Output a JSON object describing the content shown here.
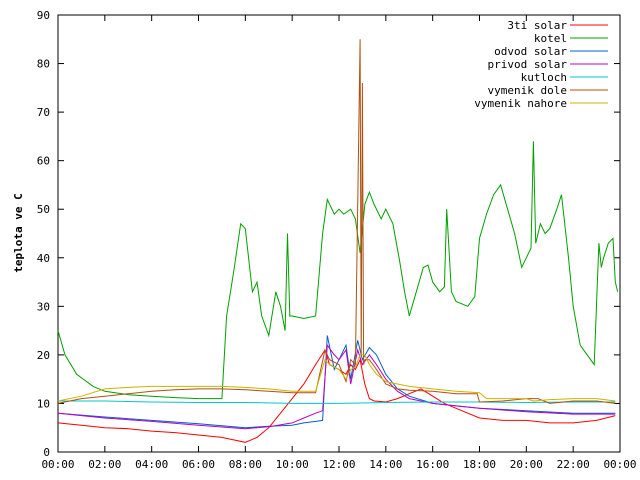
{
  "chart_data": {
    "type": "line",
    "title": "",
    "xlabel": "",
    "ylabel": "teplota ve C",
    "xlim": [
      0,
      24
    ],
    "ylim": [
      0,
      90
    ],
    "grid": false,
    "legend_position": "top-right",
    "x_ticks": [
      {
        "value": 0,
        "label": "00:00"
      },
      {
        "value": 2,
        "label": "02:00"
      },
      {
        "value": 4,
        "label": "04:00"
      },
      {
        "value": 6,
        "label": "06:00"
      },
      {
        "value": 8,
        "label": "08:00"
      },
      {
        "value": 10,
        "label": "10:00"
      },
      {
        "value": 12,
        "label": "12:00"
      },
      {
        "value": 14,
        "label": "14:00"
      },
      {
        "value": 16,
        "label": "16:00"
      },
      {
        "value": 18,
        "label": "18:00"
      },
      {
        "value": 20,
        "label": "20:00"
      },
      {
        "value": 22,
        "label": "22:00"
      },
      {
        "value": 24,
        "label": "00:00"
      }
    ],
    "y_ticks": [
      {
        "value": 0,
        "label": "0"
      },
      {
        "value": 10,
        "label": "10"
      },
      {
        "value": 20,
        "label": "20"
      },
      {
        "value": 30,
        "label": "30"
      },
      {
        "value": 40,
        "label": "40"
      },
      {
        "value": 50,
        "label": "50"
      },
      {
        "value": 60,
        "label": "60"
      },
      {
        "value": 70,
        "label": "70"
      },
      {
        "value": 80,
        "label": "80"
      },
      {
        "value": 90,
        "label": "90"
      }
    ],
    "series": [
      {
        "name": "3ti solar",
        "color": "#ff0000",
        "x": [
          0,
          1,
          2,
          3,
          4,
          5,
          6,
          7,
          7.5,
          8,
          8.5,
          9,
          9.5,
          10,
          10.5,
          11,
          11.4,
          11.6,
          12,
          12.3,
          12.5,
          12.7,
          12.9,
          13.1,
          13.3,
          13.5,
          14,
          14.5,
          15,
          15.5,
          16,
          16.5,
          17,
          18,
          19,
          20,
          21,
          22,
          23,
          23.8
        ],
        "y": [
          6,
          5.5,
          5,
          4.8,
          4.3,
          4,
          3.5,
          3,
          2.5,
          2,
          3,
          5,
          8,
          11,
          14,
          18,
          21,
          18,
          17,
          16,
          18,
          17,
          19,
          14,
          11,
          10.5,
          10.3,
          11,
          12,
          13,
          11.5,
          10,
          9,
          7,
          6.5,
          6.5,
          6,
          6,
          6.5,
          7.5
        ]
      },
      {
        "name": "kotel",
        "color": "#00a000",
        "x": [
          0,
          0.3,
          0.8,
          1.5,
          2,
          3,
          4,
          5,
          6,
          7,
          7.2,
          7.5,
          7.8,
          8,
          8.3,
          8.5,
          8.7,
          9,
          9.3,
          9.5,
          9.7,
          9.8,
          9.9,
          10,
          10.5,
          11,
          11.3,
          11.5,
          11.8,
          12,
          12.2,
          12.5,
          12.7,
          12.9,
          13.1,
          13.3,
          13.5,
          13.8,
          14,
          14.3,
          14.6,
          14.8,
          15,
          15.3,
          15.6,
          15.8,
          16,
          16.3,
          16.5,
          16.6,
          16.8,
          17,
          17.5,
          17.8,
          18,
          18.3,
          18.6,
          18.9,
          19.2,
          19.5,
          19.8,
          20,
          20.2,
          20.3,
          20.4,
          20.6,
          20.8,
          21,
          21.3,
          21.5,
          21.8,
          22,
          22.3,
          22.6,
          22.9,
          23.1,
          23.2,
          23.3,
          23.5,
          23.7,
          23.8,
          23.9
        ],
        "y": [
          25,
          20,
          16,
          13.5,
          12.5,
          11.8,
          11.5,
          11.2,
          11,
          11,
          28,
          37,
          47,
          46,
          33,
          35,
          28,
          24,
          33,
          30,
          25,
          45,
          28,
          28,
          27.5,
          28,
          45,
          52,
          49,
          50,
          49,
          50,
          48,
          41,
          51,
          53.5,
          51,
          48,
          50,
          47,
          39,
          33,
          28,
          33,
          38,
          38.5,
          35,
          33,
          34,
          50,
          33,
          31,
          30,
          32,
          44,
          49,
          53,
          55,
          50,
          45,
          38,
          40,
          42,
          64,
          43,
          47,
          45,
          46,
          50,
          53,
          40,
          30,
          22,
          20,
          18,
          43,
          38,
          40,
          43,
          44,
          35,
          33
        ]
      },
      {
        "name": "odvod solar",
        "color": "#0060d0",
        "x": [
          0,
          2,
          4,
          6,
          8,
          9,
          10,
          10.5,
          11,
          11.3,
          11.5,
          11.8,
          12,
          12.3,
          12.5,
          12.8,
          13,
          13.3,
          13.6,
          14,
          14.5,
          15,
          16,
          17,
          18,
          20,
          22,
          23.8
        ],
        "y": [
          8,
          7.2,
          6.5,
          5.8,
          5,
          5.3,
          5.5,
          6,
          6.3,
          6.5,
          24,
          17,
          19,
          22,
          15,
          23,
          19,
          21.5,
          20,
          16,
          13,
          11.5,
          10,
          9.5,
          9,
          8.5,
          8,
          8
        ]
      },
      {
        "name": "privod solar",
        "color": "#c000c0",
        "x": [
          0,
          2,
          4,
          6,
          8,
          9,
          10,
          10.5,
          11,
          11.3,
          11.5,
          11.8,
          12,
          12.3,
          12.5,
          12.8,
          13,
          13.3,
          13.6,
          14,
          14.5,
          15,
          16,
          17,
          18,
          20,
          22,
          23.8
        ],
        "y": [
          8,
          7,
          6.3,
          5.5,
          4.8,
          5.2,
          6,
          7,
          8,
          8.5,
          22,
          20,
          19,
          21,
          14,
          21,
          18,
          20,
          18,
          15,
          12.5,
          11,
          10,
          9.5,
          9,
          8.3,
          7.8,
          7.8
        ]
      },
      {
        "name": "kutloch",
        "color": "#00c8c8",
        "x": [
          0,
          2,
          4,
          6,
          8,
          10,
          12,
          14,
          16,
          18,
          20,
          22,
          23.8
        ],
        "y": [
          10.5,
          10.5,
          10.3,
          10.2,
          10.2,
          10,
          10,
          10.2,
          10.3,
          10.3,
          10.2,
          10.3,
          10.3
        ]
      },
      {
        "name": "vymenik dole",
        "color": "#b05010",
        "x": [
          0,
          1,
          2,
          3,
          4,
          5,
          6,
          7,
          8,
          9,
          10,
          11,
          11.4,
          11.6,
          12,
          12.3,
          12.5,
          12.7,
          12.9,
          12.95,
          13.0,
          13.05,
          13.1,
          13.3,
          13.6,
          14,
          14.5,
          15,
          16,
          17,
          17.9,
          18,
          19,
          20,
          20.5,
          21,
          22,
          23,
          23.8
        ],
        "y": [
          10,
          11,
          11.5,
          12,
          12.5,
          12.8,
          13,
          13,
          12.8,
          12.5,
          12.2,
          12.2,
          21,
          19,
          18,
          14.5,
          19,
          18,
          85,
          20,
          76,
          18,
          19,
          19,
          17,
          14,
          13,
          12.7,
          12.5,
          12,
          12,
          10.3,
          10.5,
          11,
          11,
          10,
          10.5,
          10.5,
          10
        ]
      },
      {
        "name": "vymenik nahore",
        "color": "#d0b000",
        "x": [
          0,
          1,
          2,
          3,
          4,
          5,
          6,
          7,
          8,
          9,
          10,
          11,
          11.4,
          11.6,
          12,
          12.3,
          12.5,
          12.7,
          12.9,
          13.1,
          13.3,
          13.6,
          14,
          14.5,
          15,
          16,
          17,
          18,
          18.3,
          19,
          20,
          20.3,
          21,
          22,
          23,
          23.8
        ],
        "y": [
          10.5,
          11.5,
          13,
          13.3,
          13.5,
          13.5,
          13.5,
          13.5,
          13.3,
          13,
          12.5,
          12.5,
          19,
          18,
          17,
          15,
          17,
          17.5,
          20,
          20,
          18,
          16,
          14.5,
          14,
          13.5,
          13,
          12.5,
          12.2,
          11,
          11,
          11,
          10.5,
          10.8,
          11,
          11,
          10.5
        ]
      }
    ]
  }
}
